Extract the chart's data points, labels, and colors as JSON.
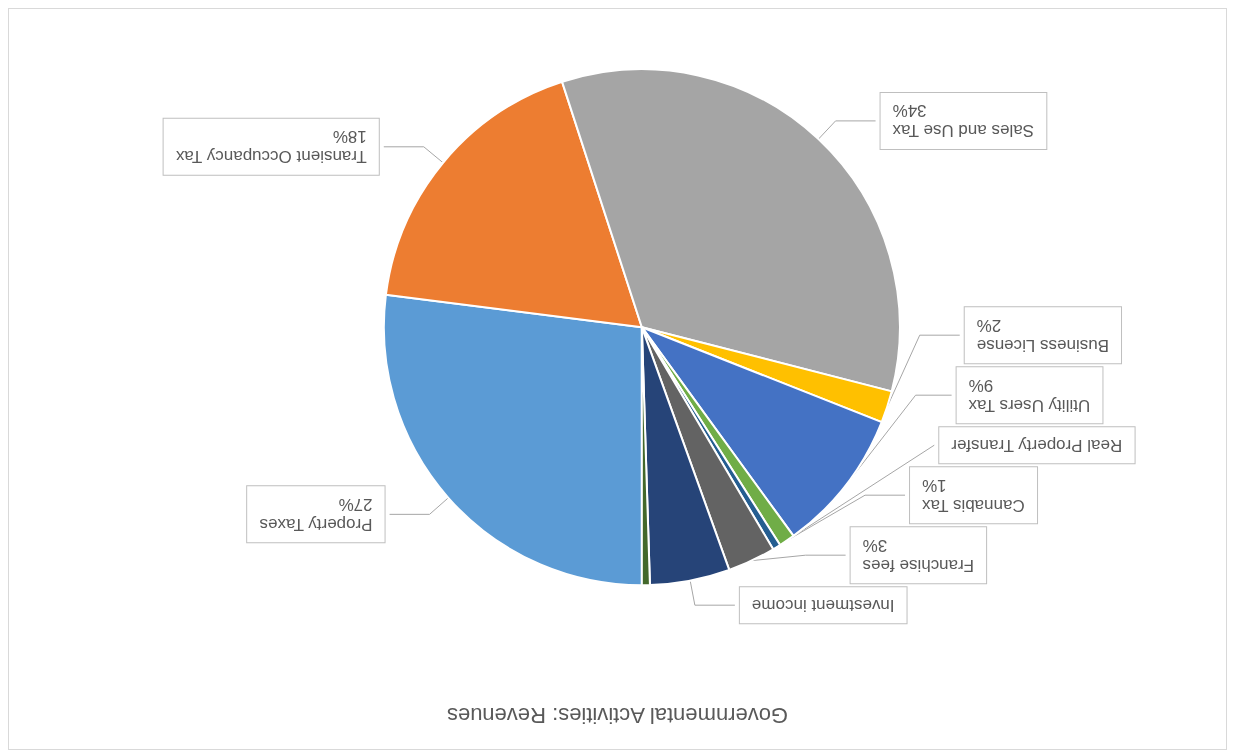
{
  "chart_data": {
    "type": "pie",
    "title": "Governmental Activities: Revenues",
    "categories": [
      "Property Taxes",
      "Transient Occupancy Tax",
      "Sales and Use Tax",
      "Business License",
      "Utility Users Tax",
      "Cannabis Tax",
      "Real Property Transfer",
      "Franchise fees",
      "Investment income",
      null
    ],
    "values": [
      27,
      18,
      34,
      2,
      9,
      1,
      0.5,
      3,
      5,
      0.5
    ],
    "value_labels": [
      "27%",
      "18%",
      "34%",
      "2%",
      "9%",
      "1%",
      null,
      "3%",
      null,
      null
    ],
    "colors": [
      "#5b9bd5",
      "#ed7d31",
      "#a5a5a5",
      "#ffc000",
      "#4472c4",
      "#70ad47",
      "#255e91",
      "#636363",
      "#264478",
      "#43682b"
    ],
    "legend": false
  }
}
